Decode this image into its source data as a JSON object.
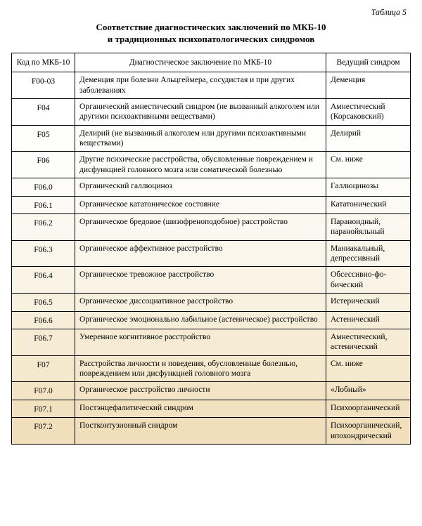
{
  "caption": "Таблица 5",
  "title_line1": "Соответствие диагностических заключений по МКБ-10",
  "title_line2": "и традиционных психопатологических синдромов",
  "columns": {
    "c1": "Код по МКБ-10",
    "c2": "Диагностическое заключение по МКБ-10",
    "c3": "Ведущий синдром"
  },
  "row_bg_colors": [
    "#ffffff",
    "#ffffff",
    "#fefefd",
    "#fdfdfb",
    "#fdfcf8",
    "#fcfaf4",
    "#fbf8f0",
    "#faf6ec",
    "#f9f4e6",
    "#f8f1e0",
    "#f7eeda",
    "#f6ebd3",
    "#f4e8cd",
    "#f3e4c6",
    "#f2e1c0",
    "#f1deba",
    "#f0dab4",
    "#efd7ae"
  ],
  "rows": [
    {
      "code": "F00-03",
      "desc": "Деменция при болезни Альцгеймера, сосудистая и при других заболеваниях",
      "syndrome": "Деменция"
    },
    {
      "code": "F04",
      "desc": "Органический амнестический синдром (не вы­званный алкоголем или другими психоактивны­ми веществами)",
      "syndrome": "Амнестический (Корсаковский)"
    },
    {
      "code": "F05",
      "desc": "Делирий (не вызванный алкоголем или другими психоактивными веществами)",
      "syndrome": "Делирий"
    },
    {
      "code": "F06",
      "desc": "Другие психические расстройства, обусловлен­ные повреждением и дисфункцией головного мозга или соматической болезнью",
      "syndrome": "См. ниже"
    },
    {
      "code": "F06.0",
      "desc": "Органический галлюциноз",
      "syndrome": "Галлюцинозы"
    },
    {
      "code": "F06.1",
      "desc": "Органическое кататоническое состояние",
      "syndrome": "Кататонический"
    },
    {
      "code": "F06.2",
      "desc": "Органическое бредовое (шизофреноподобное) расстройство",
      "syndrome": "Параноидный, паранойяльный"
    },
    {
      "code": "F06.3",
      "desc": "Органическое аффективное расстройство",
      "syndrome": "Маниакальный, депрессивный"
    },
    {
      "code": "F06.4",
      "desc": "Органическое тревожное расстройство",
      "syndrome": "Обсессивно-фо­бический"
    },
    {
      "code": "F06.5",
      "desc": "Органическое диссоциативное расстройство",
      "syndrome": "Истерический"
    },
    {
      "code": "F06.6",
      "desc": "Органическое эмоционально лабильное (астени­ческое) расстройство",
      "syndrome": "Астенический"
    },
    {
      "code": "F06.7",
      "desc": "Умеренное когнитивное расстройство",
      "syndrome": "Амнестический, астенический"
    },
    {
      "code": "F07",
      "desc": "Расстройства личности и поведения, обусловлен­ные болезнью, повреждением или дисфункцией головного мозга",
      "syndrome": "См. ниже"
    },
    {
      "code": "F07.0",
      "desc": "Органическое расстройство личности",
      "syndrome": "«Лобный»"
    },
    {
      "code": "F07.1",
      "desc": "Постэнцефалитический синдром",
      "syndrome": "Психоорганиче­ский"
    },
    {
      "code": "F07.2",
      "desc": "Постконтузионный синдром",
      "syndrome": "Психоорганиче­ский, ипохон­дрический"
    }
  ]
}
